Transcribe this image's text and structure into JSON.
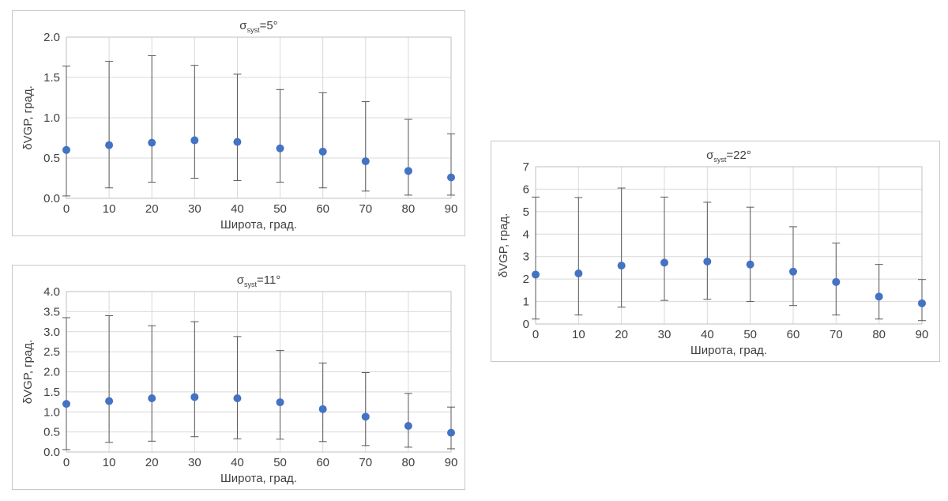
{
  "chart_data": [
    {
      "type": "scatter",
      "title_parts": [
        "σ",
        "syst",
        "=5°"
      ],
      "xlabel": "Широта, град.",
      "ylabel": "δVGP, град.",
      "x_ticks": [
        "0",
        "10",
        "20",
        "30",
        "40",
        "50",
        "60",
        "70",
        "80",
        "90"
      ],
      "y_ticks": [
        "0.0",
        "0.5",
        "1.0",
        "1.5",
        "2.0"
      ],
      "xlim": [
        0,
        90
      ],
      "ylim": [
        0,
        2
      ],
      "grid": true,
      "legend": false,
      "marker_color": "#4472c4",
      "errorbar_color": "#595959",
      "x": [
        0,
        10,
        20,
        30,
        40,
        50,
        60,
        70,
        80,
        90
      ],
      "y": [
        0.6,
        0.66,
        0.69,
        0.72,
        0.7,
        0.62,
        0.58,
        0.46,
        0.34,
        0.26
      ],
      "y_low": [
        0.03,
        0.13,
        0.2,
        0.25,
        0.22,
        0.2,
        0.13,
        0.09,
        0.04,
        0.04
      ],
      "y_high": [
        1.64,
        1.7,
        1.77,
        1.65,
        1.54,
        1.35,
        1.31,
        1.2,
        0.98,
        0.8
      ]
    },
    {
      "type": "scatter",
      "title_parts": [
        "σ",
        "syst",
        "=11°"
      ],
      "xlabel": "Широта, град.",
      "ylabel": "δVGP, град.",
      "x_ticks": [
        "0",
        "10",
        "20",
        "30",
        "40",
        "50",
        "60",
        "70",
        "80",
        "90"
      ],
      "y_ticks": [
        "0.0",
        "0.5",
        "1.0",
        "1.5",
        "2.0",
        "2.5",
        "3.0",
        "3.5",
        "4.0"
      ],
      "xlim": [
        0,
        90
      ],
      "ylim": [
        0,
        4
      ],
      "grid": true,
      "legend": false,
      "marker_color": "#4472c4",
      "errorbar_color": "#595959",
      "x": [
        0,
        10,
        20,
        30,
        40,
        50,
        60,
        70,
        80,
        90
      ],
      "y": [
        1.2,
        1.27,
        1.34,
        1.37,
        1.34,
        1.24,
        1.07,
        0.88,
        0.65,
        0.48
      ],
      "y_low": [
        0.06,
        0.24,
        0.27,
        0.38,
        0.33,
        0.32,
        0.26,
        0.16,
        0.12,
        0.08
      ],
      "y_high": [
        3.35,
        3.4,
        3.15,
        3.25,
        2.88,
        2.53,
        2.22,
        1.98,
        1.46,
        1.12
      ]
    },
    {
      "type": "scatter",
      "title_parts": [
        "σ",
        "syst",
        "=22°"
      ],
      "xlabel": "Широта, град.",
      "ylabel": "δVGP, град.",
      "x_ticks": [
        "0",
        "10",
        "20",
        "30",
        "40",
        "50",
        "60",
        "70",
        "80",
        "90"
      ],
      "y_ticks": [
        "0",
        "1",
        "2",
        "3",
        "4",
        "5",
        "6",
        "7"
      ],
      "xlim": [
        0,
        90
      ],
      "ylim": [
        0,
        7
      ],
      "grid": true,
      "legend": false,
      "marker_color": "#4472c4",
      "errorbar_color": "#595959",
      "x": [
        0,
        10,
        20,
        30,
        40,
        50,
        60,
        70,
        80,
        90
      ],
      "y": [
        2.2,
        2.25,
        2.6,
        2.73,
        2.78,
        2.65,
        2.33,
        1.87,
        1.22,
        0.92
      ],
      "y_low": [
        0.22,
        0.4,
        0.75,
        1.05,
        1.1,
        1.0,
        0.82,
        0.4,
        0.22,
        0.15
      ],
      "y_high": [
        5.65,
        5.63,
        6.05,
        5.65,
        5.42,
        5.2,
        4.33,
        3.6,
        2.65,
        1.98
      ]
    }
  ]
}
